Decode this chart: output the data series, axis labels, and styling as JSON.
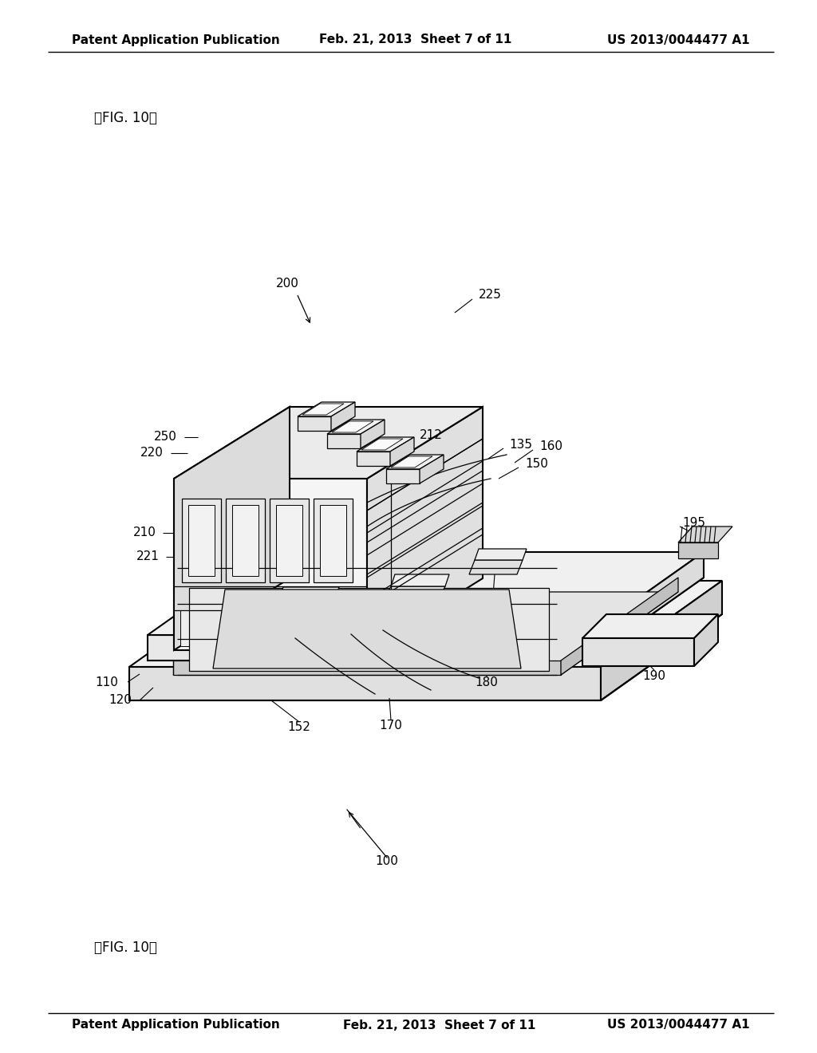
{
  "header_left": "Patent Application Publication",
  "header_mid": "Feb. 21, 2013  Sheet 7 of 11",
  "header_right": "US 2013/0044477 A1",
  "fig_label": "【FIG. 10】",
  "background_color": "#ffffff",
  "line_color": "#000000",
  "lw_main": 1.5,
  "lw_thin": 0.9,
  "label_fontsize": 11,
  "header_fontsize": 11
}
